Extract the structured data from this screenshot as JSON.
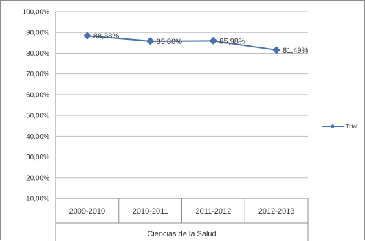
{
  "chart_data": {
    "type": "line",
    "categories": [
      "2009-2010",
      "2010-2011",
      "2011-2012",
      "2012-2013"
    ],
    "group_label": "Ciencias de la Salud",
    "series": [
      {
        "name": "Total",
        "values": [
          88.38,
          85.8,
          85.98,
          81.49
        ],
        "labels": [
          "88,38%",
          "85,80%",
          "85,98%",
          "81,49%"
        ],
        "color": "#4a72b0"
      }
    ],
    "ylim": [
      10,
      100
    ],
    "yticks": [
      10,
      20,
      30,
      40,
      50,
      60,
      70,
      80,
      90,
      100
    ],
    "ytick_labels": [
      "10,00%",
      "20,00%",
      "30,00%",
      "40,00%",
      "50,00%",
      "60,00%",
      "70,00%",
      "80,00%",
      "90,00%",
      "100,00%"
    ],
    "grid": true,
    "legend": "right"
  }
}
